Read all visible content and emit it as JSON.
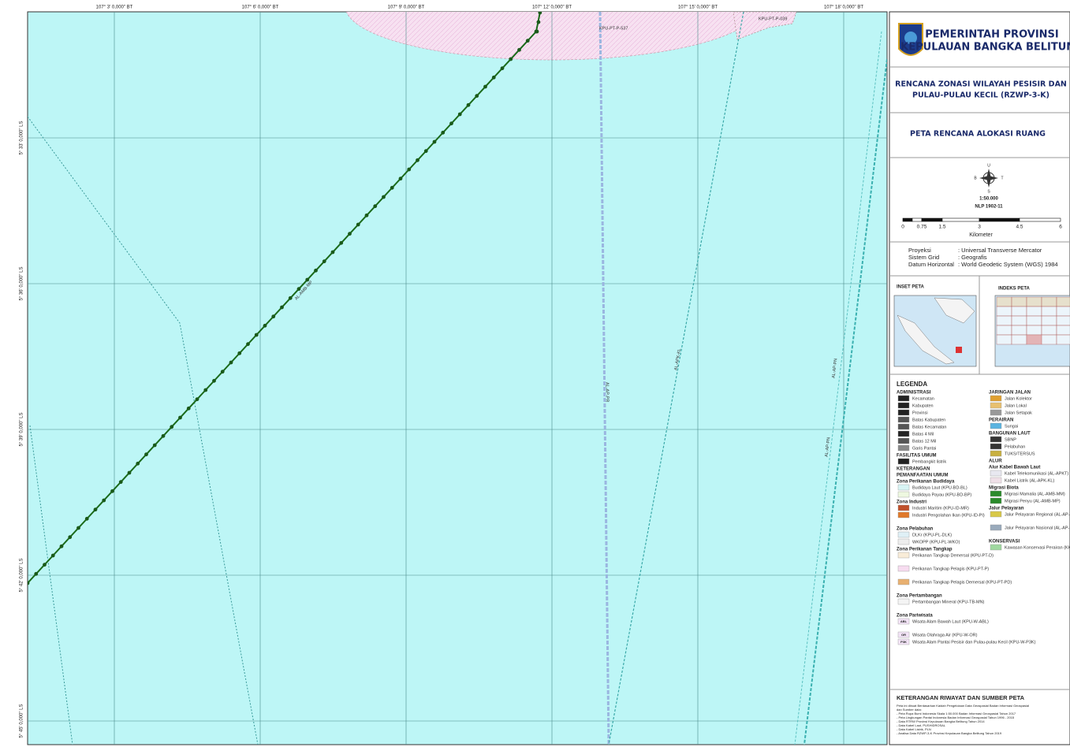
{
  "header": {
    "org": "PEMERINTAH PROVINSI",
    "org2": "KEPULAUAN BANGKA BELITUNG",
    "plan": "RENCANA ZONASI WILAYAH PESISIR DAN",
    "plan2": "PULAU-PULAU KECIL (RZWP-3-K)",
    "map_title": "PETA RENCANA ALOKASI RUANG"
  },
  "compass": {
    "north": "U",
    "south": "S",
    "east": "T",
    "west": "B"
  },
  "scale": {
    "ratio": "1:50.000",
    "sheet": "NLP 1902-11",
    "ticks": [
      "0",
      "0.75",
      "1.5",
      "3",
      "4.5",
      "6"
    ],
    "unit": "Kilometer"
  },
  "projection": [
    [
      "Proyeksi",
      ": Universal Transverse Mercator"
    ],
    [
      "Sistem Grid",
      ": Geografis"
    ],
    [
      "Datum Horizontal",
      ": World Geodetic System (WGS) 1984"
    ]
  ],
  "inset": {
    "inset_title": "INSET PETA",
    "index_title": "INDEKS PETA"
  },
  "map": {
    "x_labels": [
      "107° 3' 0,000\" BT",
      "107° 6' 0,000\" BT",
      "107° 9' 0,000\" BT",
      "107° 12' 0,000\" BT",
      "107° 15' 0,000\" BT",
      "107° 18' 0,000\" BT"
    ],
    "y_labels": [
      "5° 33' 0,000\" LS",
      "5° 36' 0,000\" LS",
      "5° 39' 0,000\" LS",
      "5° 42' 0,000\" LS",
      "5° 45' 0,000\" LS"
    ],
    "zone_labels": [
      "KPU-PT-P-537",
      "KPU-PT-P-039"
    ],
    "line_labels": [
      "AL-AMB-MP",
      "AL-AP-PR",
      "AL-APK-KL",
      "AL-AP-PN",
      "AL-AP-PN"
    ]
  },
  "legend": {
    "title": "LEGENDA",
    "left": [
      {
        "heading": "ADMINISTRASI",
        "items": [
          {
            "label": "Kecamatan",
            "color": "#222"
          },
          {
            "label": "Kabupaten",
            "color": "#222"
          },
          {
            "label": "Provinsi",
            "color": "#222"
          },
          {
            "label": "Batas Kabupaten",
            "color": "#555"
          },
          {
            "label": "Batas Kecamatan",
            "color": "#555"
          },
          {
            "label": "Batas 4 Mil",
            "color": "#222"
          },
          {
            "label": "Batas 12 Mil",
            "color": "#555"
          },
          {
            "label": "Garis Pantai",
            "color": "#888"
          }
        ]
      },
      {
        "heading": "FASILITAS UMUM",
        "items": [
          {
            "label": "Pembangkit listrik",
            "color": "#222"
          }
        ]
      },
      {
        "heading": "KETERANGAN",
        "items": []
      },
      {
        "heading": "PEMANFAATAN UMUM",
        "items": []
      },
      {
        "heading": "Zona Perikanan Budidaya",
        "items": [
          {
            "label": "Budidaya Laut (KPU-BD-BL)",
            "color": "#d8f4f4"
          },
          {
            "label": "Budidaya Payau (KPU-BD-BP)",
            "color": "#eef8e0"
          }
        ]
      },
      {
        "heading": "Zona Industri",
        "items": [
          {
            "label": "Industri Maritim (KPU-ID-MR)",
            "color": "#c0502a"
          },
          {
            "label": "Industri Pengolahan Ikan (KPU-ID-PI)",
            "color": "#e07a2a"
          }
        ]
      },
      {
        "heading": "Zona Pelabuhan",
        "items": [
          {
            "label": "DLKr (KPU-PL-DLK)",
            "color": "#dff0f6"
          },
          {
            "label": "WKOPP (KPU-PL-WKO)",
            "color": "#eeeeee"
          }
        ]
      },
      {
        "heading": "Zona Perikanan Tangkap",
        "items": [
          {
            "label": "Perikanan Tangkap Demersal (KPU-PT-D)",
            "color": "#f8ecd8"
          },
          {
            "label": "Perikanan Tangkap Pelagis (KPU-PT-P)",
            "color": "#f7dcf0"
          },
          {
            "label": "Perikanan Tangkap Pelagis Demersal (KPU-PT-PD)",
            "color": "#e8b070"
          }
        ]
      },
      {
        "heading": "Zona Pertambangan",
        "items": [
          {
            "label": "Pertambangan Mineral (KPU-TB-MN)",
            "color": "#f4f4f4"
          }
        ]
      },
      {
        "heading": "Zona Pariwisata",
        "items": [
          {
            "label": "Wisata Alam Bawah Laut (KPU-W-ABL)",
            "color": "#f3e4f7",
            "code": "ABL"
          },
          {
            "label": "Wisata Olahraga Air (KPU-W-OR)",
            "color": "#f3e4f7",
            "code": "OR"
          },
          {
            "label": "Wisata Alam Pantai Pesisir dan Pulau-pulau Kecil (KPU-W-P3K)",
            "color": "#f3e4f7",
            "code": "P3K"
          }
        ]
      }
    ],
    "right": [
      {
        "heading": "JARINGAN JALAN",
        "items": [
          {
            "label": "Jalan Kolektor",
            "color": "#e0a030"
          },
          {
            "label": "Jalan Lokal",
            "color": "#e8c070"
          },
          {
            "label": "Jalan Setapak",
            "color": "#999"
          }
        ]
      },
      {
        "heading": "PERAIRAN",
        "items": [
          {
            "label": "Sungai",
            "color": "#5ab4e0"
          }
        ]
      },
      {
        "heading": "BANGUNAN LAUT",
        "items": [
          {
            "label": "SBNP",
            "color": "#333"
          },
          {
            "label": "Pelabuhan",
            "color": "#333"
          },
          {
            "label": "TUKS/TERSUS",
            "color": "#c8b040"
          }
        ]
      },
      {
        "heading": "ALUR",
        "items": []
      },
      {
        "heading": "Alur Kabel Bawah Laut",
        "items": [
          {
            "label": "Kabel Telekomunikasi (AL-APKT)",
            "color": "#e8e8f0"
          },
          {
            "label": "Kabel Listrik (AL-APK-KL)",
            "color": "#f0e0e8"
          }
        ]
      },
      {
        "heading": "Migrasi Biota",
        "items": [
          {
            "label": "Migrasi Mamalia (AL-AMB-MM)",
            "color": "#2a8a2a"
          },
          {
            "label": "Migrasi Penyu (AL-AMB-MP)",
            "color": "#2a8a2a"
          }
        ]
      },
      {
        "heading": "Jalur Pelayaran",
        "items": [
          {
            "label": "Jalur Pelayaran Regional (AL-AP-PR)",
            "color": "#d8c848"
          },
          {
            "label": "Jalur Pelayaran Nasional (AL-AP-PN)",
            "color": "#9ab"
          }
        ]
      },
      {
        "heading": "KONSERVASI",
        "items": [
          {
            "label": "Kawasan Konservasi Perairan (KKP)",
            "color": "#9fd89f"
          }
        ]
      }
    ]
  },
  "notes": {
    "title": "KETERANGAN RIWAYAT DAN SUMBER PETA",
    "lines": [
      "Peta ini dibuat Berdasarkan Kaidah Pengelolaan Data Geospasial Badan Informasi Geospasial",
      "dan Sumber data:",
      "- Peta Rupa Bumi Indonesia Skala 1:50.000 Badan Informasi Geospasial Tahun 2017",
      "- Peta Lingkungan Pantai Indonesia Badan Informasi Geospasial Tahun 1996 - 2015",
      "- Data RTRW Provinsi Kepulauan Bangka Belitung Tahun 2014",
      "- Data Kabel Laut, PUSHIDROSAL",
      "- Data Kabel Listrik, PLN",
      "- Analisa Data RZWP-3-K Provinsi Kepulauan Bangka Belitung Tahun 2019"
    ]
  }
}
